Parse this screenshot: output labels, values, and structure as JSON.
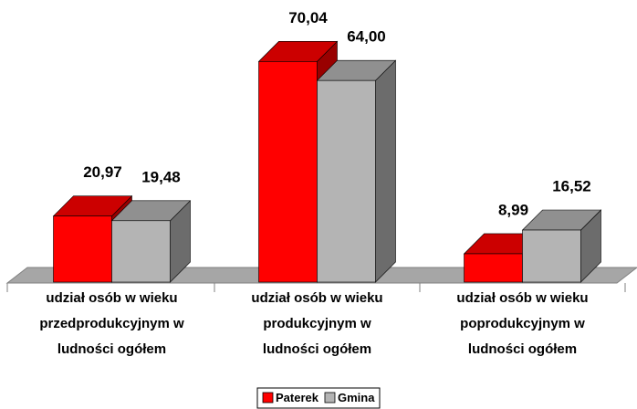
{
  "chart_data": {
    "type": "bar3d",
    "categories": [
      [
        "udział osób  w wieku",
        "przedprodukcyjnym w",
        "ludności ogółem"
      ],
      [
        "udział osób w wieku",
        "produkcyjnym w",
        "ludności ogółem"
      ],
      [
        "udział osób w wieku",
        "poprodukcyjnym w",
        "ludności ogółem"
      ]
    ],
    "series": [
      {
        "name": "Paterek",
        "color": "#ff0000",
        "values": [
          20.97,
          70.04,
          8.99
        ],
        "value_labels": [
          "20,97",
          "70,04",
          "8,99"
        ]
      },
      {
        "name": "Gmina",
        "color": "#b4b4b4",
        "values": [
          19.48,
          64.0,
          16.52
        ],
        "value_labels": [
          "19,48",
          "64,00",
          "16,52"
        ]
      }
    ],
    "legend": "bottom"
  }
}
